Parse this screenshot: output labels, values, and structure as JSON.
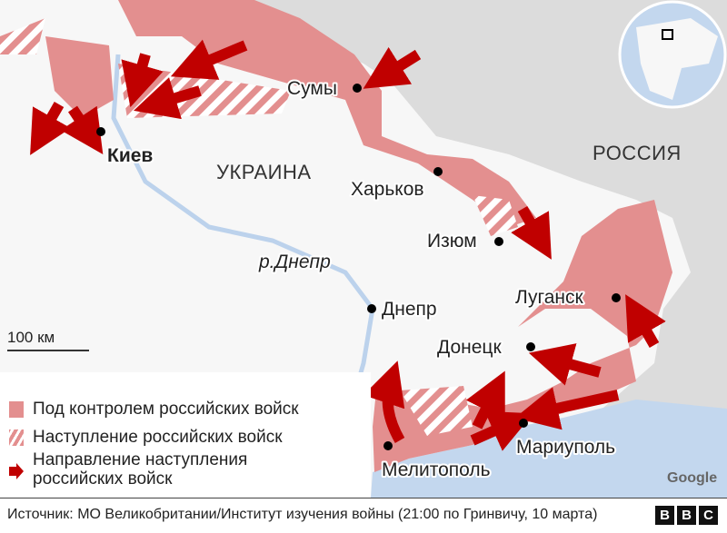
{
  "map": {
    "country_labels": {
      "ukraine": "УКРАИНА",
      "russia": "РОССИЯ"
    },
    "river_label": "р.Днепр",
    "cities": [
      "Киев",
      "Сумы",
      "Харьков",
      "Изюм",
      "Днепр",
      "Луганск",
      "Донецк",
      "Мариуполь",
      "Мелитополь"
    ],
    "scale_label": "100 км",
    "attribution": "Google",
    "colors": {
      "controlled": "#e38f8f",
      "arrow": "#c00000",
      "russia": "#dcdcdc",
      "sea": "#c3d7ee",
      "ukraine": "#f7f7f7"
    }
  },
  "legend": {
    "controlled": "Под контролем российских войск",
    "advance": "Наступление российских войск",
    "direction": "Направление наступления российских войск"
  },
  "footer": {
    "source": "Источник: МО Великобритании/Институт изучения войны (21:00 по Гринвичу, 10 марта)",
    "logo": [
      "B",
      "B",
      "C"
    ]
  }
}
